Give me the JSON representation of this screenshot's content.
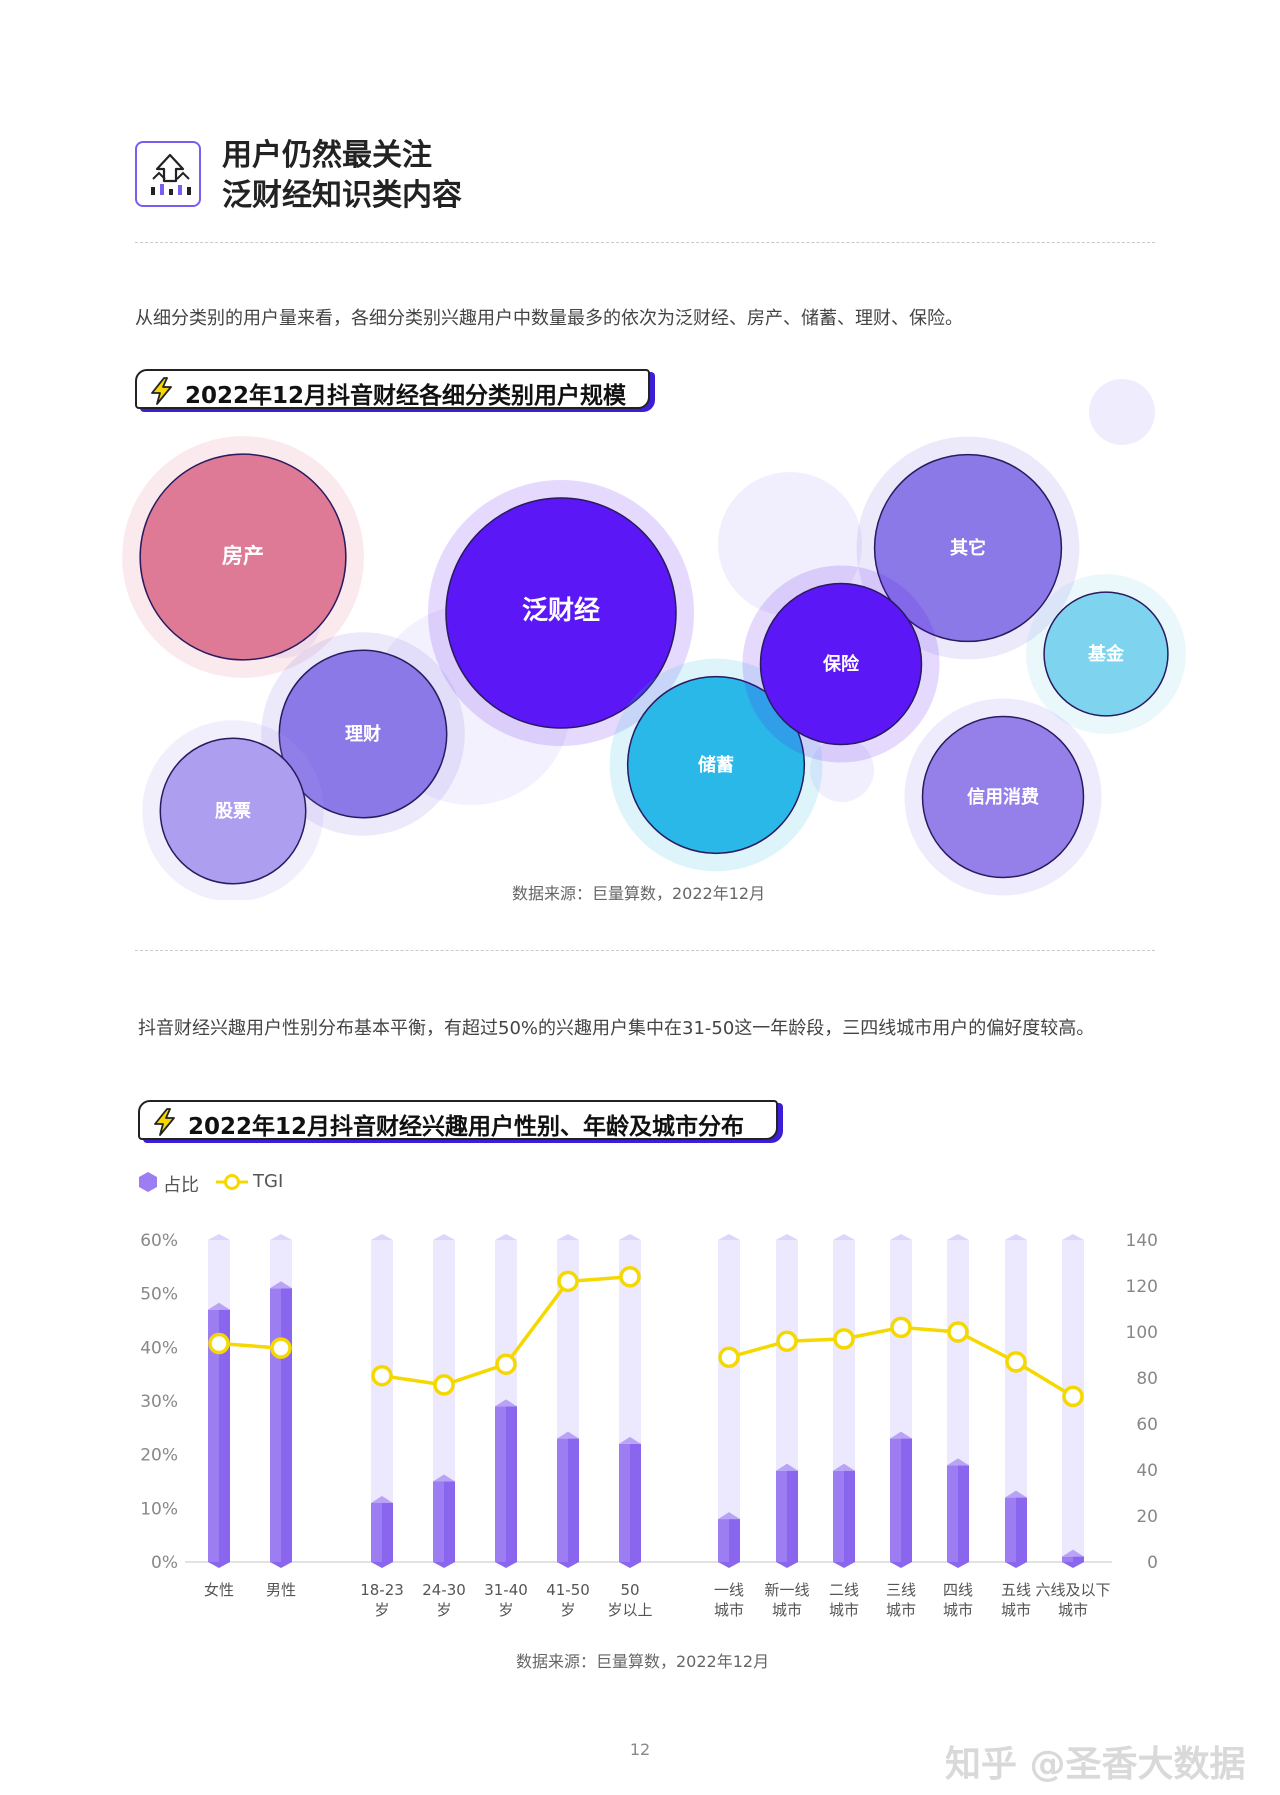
{
  "header": {
    "title_line1": "用户仍然最关注",
    "title_line2": "泛财经知识类内容",
    "icon": "rising-bars-arrow-icon"
  },
  "section1": {
    "paragraph": "从细分类别的用户量来看，各细分类别兴趣用户中数量最多的依次为泛财经、房产、储蓄、理财、保险。",
    "chart_title": "2022年12月抖音财经各细分类别用户规模",
    "source": "数据来源：巨量算数，2022年12月"
  },
  "section2": {
    "paragraph": "抖音财经兴趣用户性别分布基本平衡，有超过50%的兴趣用户集中在31-50这一年龄段，三四线城市用户的偏好度较高。",
    "chart_title": "2022年12月抖音财经兴趣用户性别、年龄及城市分布",
    "source": "数据来源：巨量算数，2022年12月"
  },
  "page_number": "12",
  "watermark": "知乎 @圣香大数据",
  "colors": {
    "purple_bar": "#9d7df2",
    "track": "#ece8fd",
    "tgi_line": "#f5d800",
    "title_shadow": "#3b1fd6"
  },
  "chart_data": [
    {
      "type": "bubble",
      "title": "2022年12月抖音财经各细分类别用户规模",
      "note": "relative bubble size indicates user scale",
      "bubbles": [
        {
          "label": "泛财经",
          "size": 100,
          "color": "#5b17f5"
        },
        {
          "label": "房产",
          "size": 80,
          "color": "#de7a95"
        },
        {
          "label": "其它",
          "size": 66,
          "color": "#8b79e8"
        },
        {
          "label": "储蓄",
          "size": 59,
          "color": "#29b8e8"
        },
        {
          "label": "信用消费",
          "size": 49,
          "color": "#9580ea"
        },
        {
          "label": "保险",
          "size": 49,
          "color": "#5b17f5"
        },
        {
          "label": "理财",
          "size": 53,
          "color": "#8b79e8"
        },
        {
          "label": "股票",
          "size": 40,
          "color": "#ad9ef0"
        },
        {
          "label": "基金",
          "size": 29,
          "color": "#7ed4ee"
        }
      ]
    },
    {
      "type": "bar",
      "title": "2022年12月抖音财经兴趣用户性别、年龄及城市分布",
      "legend": {
        "bar": "占比",
        "line": "TGI"
      },
      "groups": [
        {
          "categories": [
            [
              "女性"
            ],
            [
              "男性"
            ]
          ],
          "share": [
            47,
            51
          ],
          "tgi": [
            95,
            93
          ]
        },
        {
          "categories": [
            [
              "18-23",
              "岁"
            ],
            [
              "24-30",
              "岁"
            ],
            [
              "31-40",
              "岁"
            ],
            [
              "41-50",
              "岁"
            ],
            [
              "50",
              "岁以上"
            ]
          ],
          "share": [
            11,
            15,
            29,
            23,
            22
          ],
          "tgi": [
            81,
            77,
            86,
            122,
            124
          ]
        },
        {
          "categories": [
            [
              "一线",
              "城市"
            ],
            [
              "新一线",
              "城市"
            ],
            [
              "二线",
              "城市"
            ],
            [
              "三线",
              "城市"
            ],
            [
              "四线",
              "城市"
            ],
            [
              "五线",
              "城市"
            ],
            [
              "六线及以下",
              "城市"
            ]
          ],
          "share": [
            8,
            17,
            17,
            23,
            18,
            12,
            1
          ],
          "tgi": [
            89,
            96,
            97,
            102,
            100,
            87,
            72
          ]
        }
      ],
      "y_left": {
        "range": [
          0,
          60
        ],
        "ticks": [
          "0%",
          "10%",
          "20%",
          "30%",
          "40%",
          "50%",
          "60%"
        ]
      },
      "y_right": {
        "range": [
          0,
          140
        ],
        "ticks": [
          "0",
          "20",
          "40",
          "60",
          "80",
          "100",
          "120",
          "140"
        ]
      }
    }
  ]
}
